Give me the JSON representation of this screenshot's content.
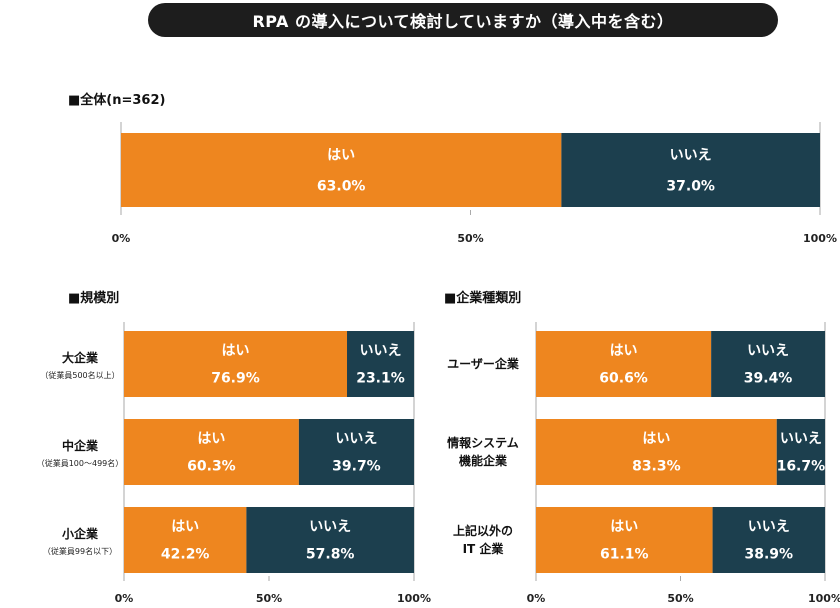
{
  "title": "RPA の導入について検討していますか（導入中を含む）",
  "colors": {
    "yes": "#ee861f",
    "no": "#1c3f4e",
    "axis": "#aaaaaa"
  },
  "chart_data": [
    {
      "type": "bar",
      "orientation": "horizontal-stacked-percent",
      "section_label": "■全体(n=362)",
      "categories": [
        ""
      ],
      "series": [
        {
          "name": "はい",
          "values": [
            63.0
          ]
        },
        {
          "name": "いいえ",
          "values": [
            37.0
          ]
        }
      ],
      "ticks": [
        "0%",
        "50%",
        "100%"
      ],
      "xlim": [
        0,
        100
      ]
    },
    {
      "type": "bar",
      "orientation": "horizontal-stacked-percent",
      "section_label": "■規模別",
      "categories": [
        {
          "main": "大企業",
          "sub": "（従業員500名以上）"
        },
        {
          "main": "中企業",
          "sub": "（従業員100～499名）"
        },
        {
          "main": "小企業",
          "sub": "（従業員99名以下）"
        }
      ],
      "series": [
        {
          "name": "はい",
          "values": [
            76.9,
            60.3,
            42.2
          ]
        },
        {
          "name": "いいえ",
          "values": [
            23.1,
            39.7,
            57.8
          ]
        }
      ],
      "ticks": [
        "0%",
        "50%",
        "100%"
      ],
      "xlim": [
        0,
        100
      ]
    },
    {
      "type": "bar",
      "orientation": "horizontal-stacked-percent",
      "section_label": "■企業種類別",
      "categories": [
        {
          "main": "ユーザー企業",
          "sub": ""
        },
        {
          "main": "情報システム\n機能企業",
          "sub": ""
        },
        {
          "main": "上記以外の\nIT 企業",
          "sub": ""
        }
      ],
      "series": [
        {
          "name": "はい",
          "values": [
            60.6,
            83.3,
            61.1
          ]
        },
        {
          "name": "いいえ",
          "values": [
            39.4,
            16.7,
            38.9
          ]
        }
      ],
      "ticks": [
        "0%",
        "50%",
        "100%"
      ],
      "xlim": [
        0,
        100
      ]
    }
  ]
}
